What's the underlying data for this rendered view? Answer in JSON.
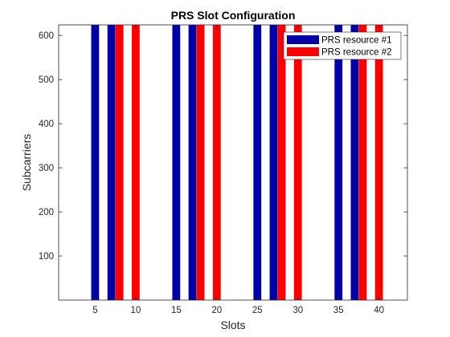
{
  "chart_data": {
    "type": "bar",
    "title": "PRS Slot Configuration",
    "xlabel": "Slots",
    "ylabel": "Subcarriers",
    "xlim": [
      0.5,
      43.5
    ],
    "ylim": [
      0,
      624
    ],
    "xticks": [
      5,
      10,
      15,
      20,
      25,
      30,
      35,
      40
    ],
    "yticks": [
      100,
      200,
      300,
      400,
      500,
      600
    ],
    "bar_value": 624,
    "grid": false,
    "legend_position": "top-right",
    "series": [
      {
        "name": "PRS resource #1",
        "color": "#0000A8",
        "slots": [
          5,
          7,
          15,
          17,
          25,
          27,
          35,
          37
        ]
      },
      {
        "name": "PRS resource #2",
        "color": "#FF0000",
        "slots": [
          8,
          10,
          18,
          20,
          28,
          30,
          38,
          40
        ]
      }
    ]
  }
}
